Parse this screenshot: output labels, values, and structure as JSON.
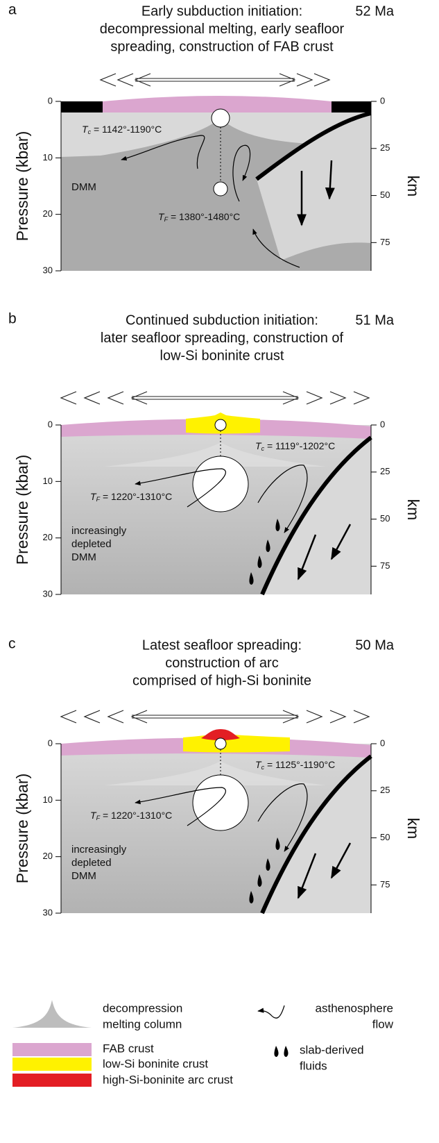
{
  "panels": [
    {
      "label": "a",
      "title": [
        "Early subduction initiation:",
        "decompressional melting, early seafloor",
        "spreading, construction of FAB crust"
      ],
      "age": "52 Ma",
      "y_axis_label": "Pressure (kbar)",
      "y2_axis_label": "km",
      "pressure_ticks": [
        0,
        10,
        20,
        30
      ],
      "depth_ticks": [
        0,
        25,
        50,
        75
      ],
      "tc": {
        "symbol": "T",
        "subscript": "c",
        "text": " = 1142°-1190°C"
      },
      "tf": {
        "symbol": "T",
        "subscript": "F",
        "text": " = 1380°-1480°C"
      },
      "mantle_label": [
        "DMM"
      ]
    },
    {
      "label": "b",
      "title": [
        "Continued subduction initiation:",
        "later seafloor spreading, construction of",
        "low-Si boninite crust"
      ],
      "age": "51 Ma",
      "y_axis_label": "Pressure (kbar)",
      "y2_axis_label": "km",
      "pressure_ticks": [
        0,
        10,
        20,
        30
      ],
      "depth_ticks": [
        0,
        25,
        50,
        75
      ],
      "tc": {
        "symbol": "T",
        "subscript": "c",
        "text": " = 1119°-1202°C"
      },
      "tf": {
        "symbol": "T",
        "subscript": "F",
        "text": " = 1220°-1310°C"
      },
      "mantle_label": [
        "increasingly",
        "depleted",
        "DMM"
      ]
    },
    {
      "label": "c",
      "title": [
        "Latest seafloor spreading:",
        "construction of arc",
        "comprised of high-Si boninite"
      ],
      "age": "50 Ma",
      "y_axis_label": "Pressure (kbar)",
      "y2_axis_label": "km",
      "pressure_ticks": [
        0,
        10,
        20,
        30
      ],
      "depth_ticks": [
        0,
        25,
        50,
        75
      ],
      "tc": {
        "symbol": "T",
        "subscript": "c",
        "text": " = 1125°-1190°C"
      },
      "tf": {
        "symbol": "T",
        "subscript": "F",
        "text": " = 1220°-1310°C"
      },
      "mantle_label": [
        "increasingly",
        "depleted",
        "DMM"
      ]
    }
  ],
  "legend": {
    "melting_column": [
      "decompression",
      "melting column"
    ],
    "flow": [
      "asthenosphere",
      "flow"
    ],
    "fab_crust": "FAB crust",
    "low_si_crust": "low-Si boninite crust",
    "high_si_crust": "high-Si-boninite arc crust",
    "fluids": [
      "slab-derived",
      "fluids"
    ]
  }
}
